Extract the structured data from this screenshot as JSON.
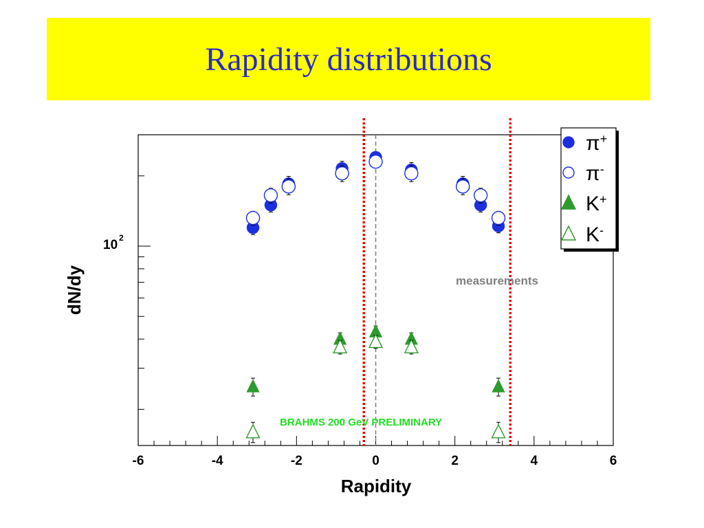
{
  "slide": {
    "title": "Rapidity distributions"
  },
  "colors": {
    "banner": "#ffff00",
    "title_text": "#2b2bc4",
    "pion": "#1c2fe0",
    "kaon": "#2e9a2e",
    "marker_lines": "#e00000",
    "midrapidity_line": "#808080",
    "preliminary_text": "#22dd22"
  },
  "chart_data": {
    "type": "scatter",
    "title": "",
    "xlabel": "Rapidity",
    "ylabel": "dN/dy",
    "xlim": [
      -6,
      6
    ],
    "ylim": [
      14,
      300
    ],
    "y_scale": "log",
    "x_ticks": [
      "-6",
      "-4",
      "-2",
      "0",
      "2",
      "4",
      "6"
    ],
    "y_major_tick_label": {
      "base": "10",
      "exponent": "2"
    },
    "legend_position": "top-right",
    "series": [
      {
        "name": "π+",
        "symbol": "filled-circle",
        "color": "#1c2fe0",
        "x": [
          -3.1,
          -2.65,
          -2.2,
          -0.85,
          0.0,
          0.9,
          2.2,
          2.65,
          3.1
        ],
        "y": [
          120,
          150,
          185,
          215,
          240,
          212,
          185,
          150,
          122
        ],
        "err": [
          8,
          10,
          14,
          16,
          10,
          16,
          14,
          10,
          8
        ]
      },
      {
        "name": "π-",
        "symbol": "open-circle",
        "color": "#1c2fe0",
        "x": [
          -3.1,
          -2.65,
          -2.2,
          -0.85,
          0.0,
          0.9,
          2.2,
          2.65,
          3.1
        ],
        "y": [
          132,
          165,
          180,
          205,
          230,
          205,
          180,
          165,
          132
        ],
        "err": [
          9,
          12,
          14,
          16,
          10,
          16,
          14,
          12,
          9
        ]
      },
      {
        "name": "K+",
        "symbol": "filled-triangle",
        "color": "#2e9a2e",
        "x": [
          -3.1,
          -0.9,
          0.0,
          0.9,
          3.1
        ],
        "y": [
          25,
          40,
          43,
          40,
          25
        ],
        "err": [
          2.2,
          2.5,
          2.5,
          2.5,
          2.2
        ]
      },
      {
        "name": "K-",
        "symbol": "open-triangle",
        "color": "#2e9a2e",
        "x": [
          -3.1,
          -0.9,
          0.0,
          0.9,
          3.1
        ],
        "y": [
          16,
          37,
          39,
          37,
          16
        ],
        "err": [
          1.6,
          2.5,
          2.5,
          2.5,
          1.6
        ]
      }
    ],
    "vertical_lines": [
      {
        "x": -0.3,
        "style": "dotted",
        "color": "#e00000"
      },
      {
        "x": 0.0,
        "style": "dashed",
        "color": "#808080"
      },
      {
        "x": 3.4,
        "style": "dotted",
        "color": "#e00000"
      }
    ],
    "annotations": [
      {
        "text": "measurements",
        "color": "#808080",
        "x": 2.1,
        "y": 75
      },
      {
        "text": "BRAHMS 200 GeV PRELIMINARY",
        "color": "#22dd22",
        "x": -2.4,
        "y": 15
      }
    ],
    "grid": false
  }
}
